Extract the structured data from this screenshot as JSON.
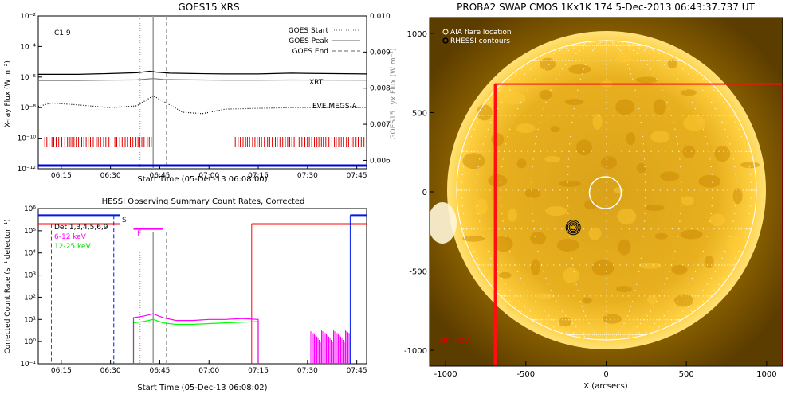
{
  "colors": {
    "xrt": "#e00000",
    "eve": "#0000e0",
    "goes_long": "#000000",
    "goes_short": "#7a7a7a",
    "red_band": "#ff0000",
    "blue_band": "#0018e8",
    "magenta": "#ff00ff",
    "green": "#00ff00",
    "sun_bright": "#ffcc33",
    "sun_dark": "#c88400",
    "background_dark": "#6a4800",
    "fov": "#ff1010"
  },
  "chart_data": [
    {
      "type": "line",
      "title": "GOES15 XRS",
      "flare_class": "C1.9",
      "xlabel": "Start Time (05-Dec-13 06:08:00)",
      "ylabel": "X-ray Flux (W m⁻²)",
      "y2label": "GOES15 Lyx Flux (W m⁻²)",
      "x_ticks": [
        "06:15",
        "06:30",
        "06:45",
        "07:00",
        "07:15",
        "07:30",
        "07:45"
      ],
      "y_ticks": [
        "10⁻²",
        "10⁻⁴",
        "10⁻⁶",
        "10⁻⁸",
        "10⁻¹⁰",
        "10⁻¹²"
      ],
      "y2_ticks": [
        "0.010",
        "0.009",
        "0.008",
        "0.007",
        "0.006"
      ],
      "x_range": [
        "06:08",
        "07:48"
      ],
      "y_range": [
        "1e-12",
        "1e-2"
      ],
      "y2_range": [
        0.006,
        0.01
      ],
      "y_scale": "log",
      "legend": [
        {
          "label": "GOES Start",
          "style": "dotted"
        },
        {
          "label": "GOES Peak",
          "style": "solid"
        },
        {
          "label": "GOES End",
          "style": "dashed"
        }
      ],
      "legend_position": "top-right",
      "goes_start": "06:39",
      "goes_peak": "06:43",
      "goes_end": "06:47",
      "series": [
        {
          "name": "",
          "color": "goes_long",
          "x": [
            "06:08",
            "06:20",
            "06:30",
            "06:38",
            "06:42",
            "06:44",
            "06:48",
            "06:55",
            "07:05",
            "07:15",
            "07:25",
            "07:35",
            "07:48"
          ],
          "values": [
            1.5e-06,
            1.5e-06,
            1.7e-06,
            1.9e-06,
            2.4e-06,
            2.1e-06,
            1.8e-06,
            1.7e-06,
            1.6e-06,
            1.6e-06,
            1.8e-06,
            1.7e-06,
            1.6e-06
          ]
        },
        {
          "name": "",
          "color": "goes_short",
          "x": [
            "06:08",
            "06:20",
            "06:30",
            "06:38",
            "06:43",
            "06:46",
            "06:55",
            "07:05",
            "07:15",
            "07:25",
            "07:35",
            "07:48"
          ],
          "values": [
            6e-07,
            6e-07,
            6.3e-07,
            6.5e-07,
            8e-07,
            7e-07,
            6.5e-07,
            6.2e-07,
            6.2e-07,
            6.4e-07,
            6.3e-07,
            6.2e-07
          ]
        },
        {
          "name": "",
          "style": "dotted",
          "x": [
            "06:08",
            "06:12",
            "06:20",
            "06:30",
            "06:38",
            "06:43",
            "06:47",
            "06:52",
            "06:58",
            "07:05",
            "07:15",
            "07:25",
            "07:35",
            "07:48"
          ],
          "values": [
            1.2e-08,
            2e-08,
            1.5e-08,
            1e-08,
            1.3e-08,
            6e-08,
            2e-08,
            5e-09,
            4e-09,
            8e-09,
            9e-09,
            1e-08,
            1e-08,
            1e-08
          ]
        }
      ],
      "labels": [
        {
          "text": "XRT",
          "color": "xrt"
        },
        {
          "text": "EVE MEGS-A",
          "color": "eve"
        }
      ],
      "xrt_intervals": [
        [
          "06:10",
          "06:43"
        ],
        [
          "07:08",
          "07:48"
        ]
      ]
    },
    {
      "type": "line",
      "title": "HESSI Observing Summary Count Rates, Corrected",
      "xlabel": "Start Time (05-Dec-13 06:08:02)",
      "ylabel": "Corrected Count Rate (s⁻¹ detector⁻¹)",
      "x_ticks": [
        "06:15",
        "06:30",
        "06:45",
        "07:00",
        "07:15",
        "07:30",
        "07:45"
      ],
      "y_ticks": [
        "10⁶",
        "10⁵",
        "10⁴",
        "10³",
        "10²",
        "10¹",
        "10⁰",
        "10⁻¹"
      ],
      "x_range": [
        "06:08",
        "07:48"
      ],
      "y_range": [
        "0.1",
        "1e6"
      ],
      "y_scale": "log",
      "legend": [
        {
          "label": "Det 1,3,4,5,6,9",
          "color": "#000000"
        },
        {
          "label": "6-12 keV",
          "color": "magenta"
        },
        {
          "label": "12-25 keV",
          "color": "green"
        }
      ],
      "flags": [
        {
          "text": "S",
          "color": "blue_band"
        },
        {
          "text": "F",
          "color": "magenta"
        }
      ],
      "series": [
        {
          "name": "6-12 keV",
          "color": "magenta",
          "x": [
            "06:37",
            "06:40",
            "06:43",
            "06:46",
            "06:50",
            "06:55",
            "07:00",
            "07:05",
            "07:10",
            "07:15"
          ],
          "values": [
            12,
            14,
            18,
            12,
            9,
            9,
            10,
            10,
            11,
            10
          ]
        },
        {
          "name": "12-25 keV",
          "color": "green",
          "x": [
            "06:37",
            "06:40",
            "06:43",
            "06:46",
            "06:50",
            "06:55",
            "07:00",
            "07:05",
            "07:10",
            "07:15"
          ],
          "values": [
            7,
            8,
            10,
            7,
            6,
            6,
            6.5,
            7,
            7.5,
            8
          ]
        }
      ]
    },
    {
      "type": "heatmap",
      "title": "PROBA2 SWAP CMOS 1Kx1K 174  5-Dec-2013 06:43:37.737 UT",
      "xlabel": "X (arcsecs)",
      "ylabel": "",
      "x_ticks": [
        "-1000",
        "-500",
        "0",
        "500",
        "1000"
      ],
      "y_ticks": [
        "1000",
        "500",
        "0",
        "-500",
        "-1000"
      ],
      "x_range": [
        -1100,
        1100
      ],
      "y_range": [
        -1100,
        1100
      ],
      "legend": [
        {
          "label": "AIA flare location",
          "symbol": "circle-open"
        },
        {
          "label": "RHESSI contours",
          "symbol": "contour"
        }
      ],
      "legend_position": "top-left",
      "fov_label": "XRT FOV",
      "aia_flare_location": {
        "x": -5,
        "y": -5
      },
      "rhessi_contour_center": {
        "x": -205,
        "y": -225
      },
      "xrt_fov": {
        "x": [
          -690,
          1100
        ],
        "y": [
          -1100,
          680
        ]
      }
    }
  ]
}
